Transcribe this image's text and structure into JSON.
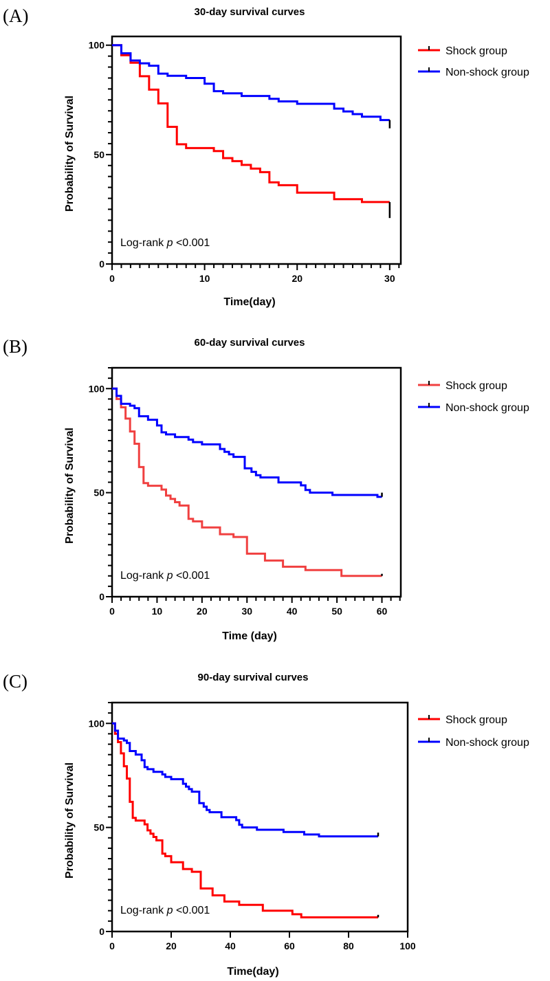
{
  "chart_data": [
    {
      "type": "line",
      "panel_label": "(A)",
      "title": "30-day survival curves",
      "xlabel": "Time(day)",
      "ylabel": "Probability of Survival",
      "xlim": [
        0,
        31.2
      ],
      "ylim": [
        0,
        104
      ],
      "xticks": [
        0,
        10,
        20,
        30
      ],
      "x_minor_step": 1,
      "yticks": [
        0,
        50,
        100
      ],
      "y_minor_step": 5,
      "annotation": {
        "prefix": "Log-rank ",
        "italic": "p",
        "suffix": " <0.001"
      },
      "legend_position": "right",
      "series": [
        {
          "name": "Shock group",
          "color": "#ff0000",
          "end_censor": [
            30,
            21
          ],
          "steps": [
            [
              0,
              100
            ],
            [
              1,
              95.4
            ],
            [
              2,
              92
            ],
            [
              3,
              85.8
            ],
            [
              4,
              79.7
            ],
            [
              5,
              73.4
            ],
            [
              6,
              62.7
            ],
            [
              7,
              54.7
            ],
            [
              8,
              53
            ],
            [
              11,
              51.6
            ],
            [
              12,
              48.4
            ],
            [
              13,
              47
            ],
            [
              14,
              45.3
            ],
            [
              15,
              43.6
            ],
            [
              16,
              42
            ],
            [
              17,
              37.3
            ],
            [
              18,
              36
            ],
            [
              20,
              32.6
            ],
            [
              24,
              29.6
            ],
            [
              27,
              28.3
            ],
            [
              30,
              28.3
            ]
          ]
        },
        {
          "name": "Non-shock group",
          "color": "#0000ff",
          "end_censor": [
            30,
            62
          ],
          "steps": [
            [
              0,
              100
            ],
            [
              1,
              96.3
            ],
            [
              2,
              93
            ],
            [
              3,
              91.7
            ],
            [
              4,
              90.6
            ],
            [
              5,
              87
            ],
            [
              6,
              86
            ],
            [
              8,
              85
            ],
            [
              10,
              82.4
            ],
            [
              11,
              79
            ],
            [
              12,
              78
            ],
            [
              14,
              76.8
            ],
            [
              17,
              75.5
            ],
            [
              18,
              74.3
            ],
            [
              20,
              73.2
            ],
            [
              24,
              71
            ],
            [
              25,
              69.7
            ],
            [
              26,
              68.5
            ],
            [
              27,
              67.3
            ],
            [
              29,
              65.8
            ],
            [
              30,
              65.8
            ]
          ]
        }
      ]
    },
    {
      "type": "line",
      "panel_label": "(B)",
      "title": "60-day survival curves",
      "xlabel": "Time (day)",
      "ylabel": "Probability of Survival",
      "xlim": [
        0,
        64.2
      ],
      "ylim": [
        0,
        110
      ],
      "xticks": [
        0,
        10,
        20,
        30,
        40,
        50,
        60
      ],
      "x_minor_step": 2,
      "yticks": [
        0,
        50,
        100
      ],
      "y_minor_step": 5,
      "annotation": {
        "prefix": "Log-rank ",
        "italic": "p",
        "suffix": " <0.001"
      },
      "legend_position": "right",
      "series": [
        {
          "name": "Shock group",
          "color": "#f04040",
          "end_censor": [
            60,
            11
          ],
          "steps": [
            [
              0,
              100
            ],
            [
              1,
              95
            ],
            [
              2,
              91
            ],
            [
              3,
              85.6
            ],
            [
              4,
              79.4
            ],
            [
              5,
              73.5
            ],
            [
              6,
              62.3
            ],
            [
              7,
              54.6
            ],
            [
              8,
              53.3
            ],
            [
              11,
              51.5
            ],
            [
              12,
              48.6
            ],
            [
              13,
              47
            ],
            [
              14,
              45.4
            ],
            [
              15,
              43.8
            ],
            [
              17,
              37.4
            ],
            [
              18,
              36.2
            ],
            [
              20,
              33.3
            ],
            [
              24,
              30
            ],
            [
              27,
              28.7
            ],
            [
              30,
              20.7
            ],
            [
              34,
              17.4
            ],
            [
              38,
              14.4
            ],
            [
              43,
              12.8
            ],
            [
              51,
              10
            ],
            [
              60,
              10
            ]
          ]
        },
        {
          "name": "Non-shock group",
          "color": "#0000ff",
          "end_censor": [
            60,
            50
          ],
          "steps": [
            [
              0,
              100
            ],
            [
              1,
              96.5
            ],
            [
              2,
              92.7
            ],
            [
              4,
              91.8
            ],
            [
              5,
              90.6
            ],
            [
              6,
              86.7
            ],
            [
              8,
              85
            ],
            [
              10,
              82.3
            ],
            [
              11,
              79
            ],
            [
              12,
              78
            ],
            [
              14,
              76.7
            ],
            [
              17,
              75.5
            ],
            [
              18,
              74.3
            ],
            [
              20,
              73.2
            ],
            [
              24,
              71
            ],
            [
              25,
              69.6
            ],
            [
              26,
              68.4
            ],
            [
              27,
              67.2
            ],
            [
              29.5,
              61.7
            ],
            [
              31,
              60
            ],
            [
              32,
              58.4
            ],
            [
              33,
              57.3
            ],
            [
              37,
              54.9
            ],
            [
              42,
              53.5
            ],
            [
              43,
              51.3
            ],
            [
              44,
              50
            ],
            [
              49,
              48.9
            ],
            [
              59,
              48
            ],
            [
              60,
              48
            ]
          ]
        }
      ]
    },
    {
      "type": "line",
      "panel_label": "(C)",
      "title": "90-day survival curves",
      "xlabel": "Time(day)",
      "ylabel": "Probability of Survival",
      "xlim": [
        0,
        100
      ],
      "ylim": [
        0,
        110
      ],
      "xticks": [
        0,
        20,
        40,
        60,
        80,
        100
      ],
      "x_minor_step": 20,
      "yticks": [
        0,
        50,
        100
      ],
      "y_minor_step": 5,
      "annotation": {
        "prefix": "Log-rank ",
        "italic": "p",
        "suffix": " <0.001"
      },
      "legend_position": "right",
      "series": [
        {
          "name": "Shock group",
          "color": "#ff0000",
          "end_censor": [
            90,
            8
          ],
          "steps": [
            [
              0,
              100
            ],
            [
              1,
              95
            ],
            [
              2,
              91
            ],
            [
              3,
              85.6
            ],
            [
              4,
              79.4
            ],
            [
              5,
              73.5
            ],
            [
              6,
              62.3
            ],
            [
              7,
              54.6
            ],
            [
              8,
              53.3
            ],
            [
              11,
              51.5
            ],
            [
              12,
              48.6
            ],
            [
              13,
              47
            ],
            [
              14,
              45.4
            ],
            [
              15,
              43.8
            ],
            [
              17,
              37.4
            ],
            [
              18,
              36.2
            ],
            [
              20,
              33.3
            ],
            [
              24,
              30
            ],
            [
              27,
              28.7
            ],
            [
              30,
              20.7
            ],
            [
              34,
              17.4
            ],
            [
              38,
              14.4
            ],
            [
              43,
              12.8
            ],
            [
              51,
              10
            ],
            [
              61,
              8.3
            ],
            [
              64,
              6.8
            ],
            [
              90,
              6.8
            ]
          ]
        },
        {
          "name": "Non-shock group",
          "color": "#0000ff",
          "end_censor": [
            90,
            47.5
          ],
          "steps": [
            [
              0,
              100
            ],
            [
              1,
              96.5
            ],
            [
              2,
              92.7
            ],
            [
              4,
              91.8
            ],
            [
              5,
              90.6
            ],
            [
              6,
              86.7
            ],
            [
              8,
              85
            ],
            [
              10,
              82.3
            ],
            [
              11,
              79
            ],
            [
              12,
              78
            ],
            [
              14,
              76.7
            ],
            [
              17,
              75.5
            ],
            [
              18,
              74.3
            ],
            [
              20,
              73.2
            ],
            [
              24,
              71
            ],
            [
              25,
              69.6
            ],
            [
              26,
              68.4
            ],
            [
              27,
              67.2
            ],
            [
              29.5,
              61.7
            ],
            [
              31,
              60
            ],
            [
              32,
              58.4
            ],
            [
              33,
              57.3
            ],
            [
              37,
              54.9
            ],
            [
              42,
              53.5
            ],
            [
              43,
              51.3
            ],
            [
              44,
              50
            ],
            [
              49,
              48.9
            ],
            [
              58,
              47.8
            ],
            [
              65,
              46.6
            ],
            [
              70,
              45.7
            ],
            [
              90,
              45.7
            ]
          ]
        }
      ]
    }
  ]
}
